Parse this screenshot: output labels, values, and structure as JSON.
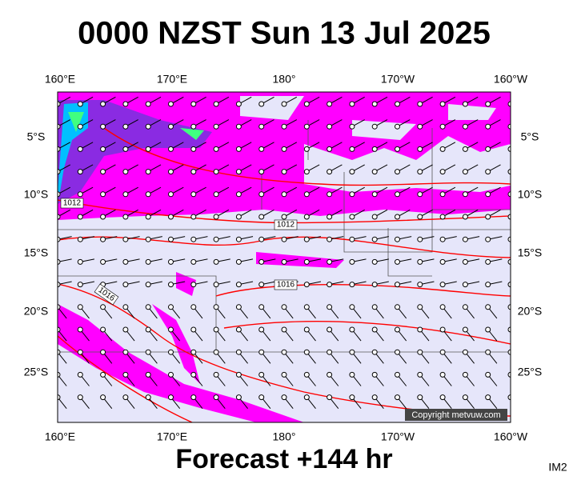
{
  "title": "0000 NZST Sun 13 Jul 2025",
  "longitude_labels_top": [
    "160°E",
    "170°E",
    "180°",
    "170°W",
    "160°W"
  ],
  "longitude_labels_bottom": [
    "160°E",
    "170°E",
    "180°",
    "170°W",
    "160°W"
  ],
  "latitude_labels_left": [
    "5°S",
    "10°S",
    "15°S",
    "20°S",
    "25°S"
  ],
  "latitude_labels_right": [
    "5°S",
    "10°S",
    "15°S",
    "20°S",
    "25°S"
  ],
  "isobar_labels": [
    "1012",
    "1012",
    "1016",
    "1016"
  ],
  "copyright": "Copyright metvuw.com",
  "footer": "Forecast +144 hr",
  "image_id": "IM2"
}
